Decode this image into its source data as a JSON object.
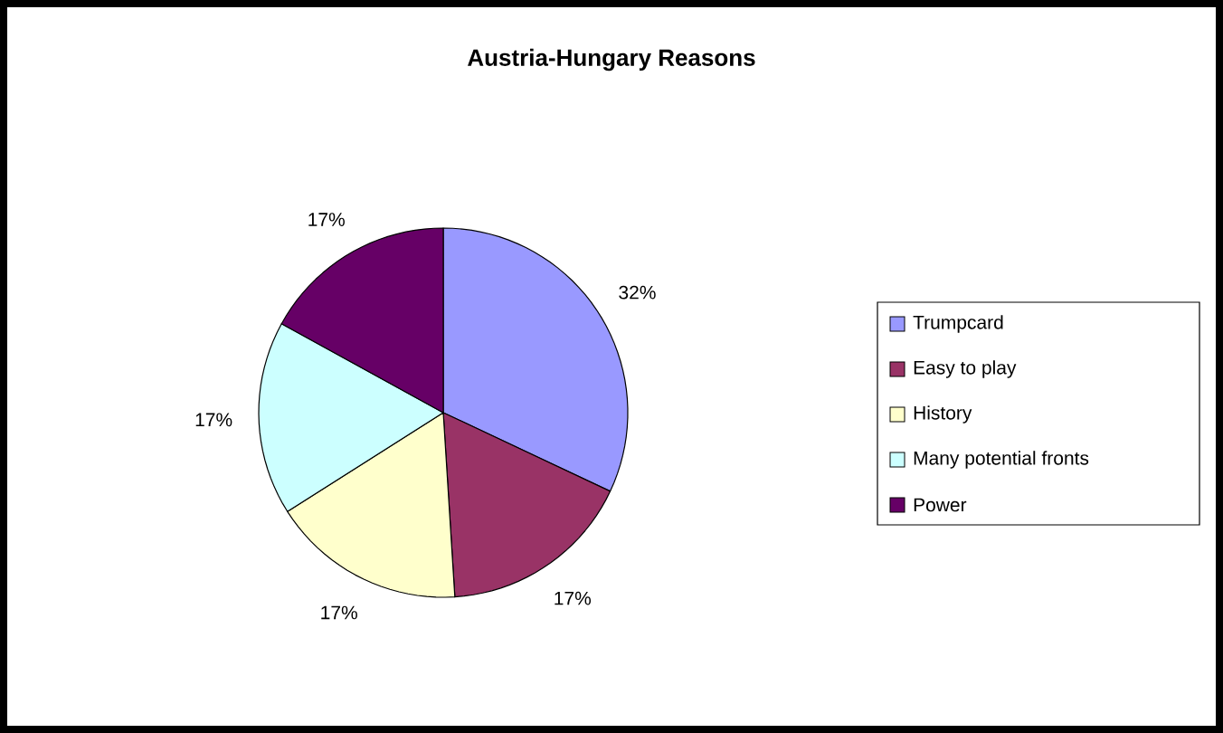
{
  "chart_data": {
    "type": "pie",
    "title": "Austria-Hungary Reasons",
    "categories": [
      "Trumpcard",
      "Easy to play",
      "History",
      "Many potential fronts",
      "Power"
    ],
    "values": [
      32,
      17,
      17,
      17,
      17
    ],
    "colors": [
      "#9999ff",
      "#993366",
      "#ffffcc",
      "#ccffff",
      "#660066"
    ],
    "value_labels": [
      "32%",
      "17%",
      "17%",
      "17%",
      "17%"
    ],
    "legend": "right"
  }
}
